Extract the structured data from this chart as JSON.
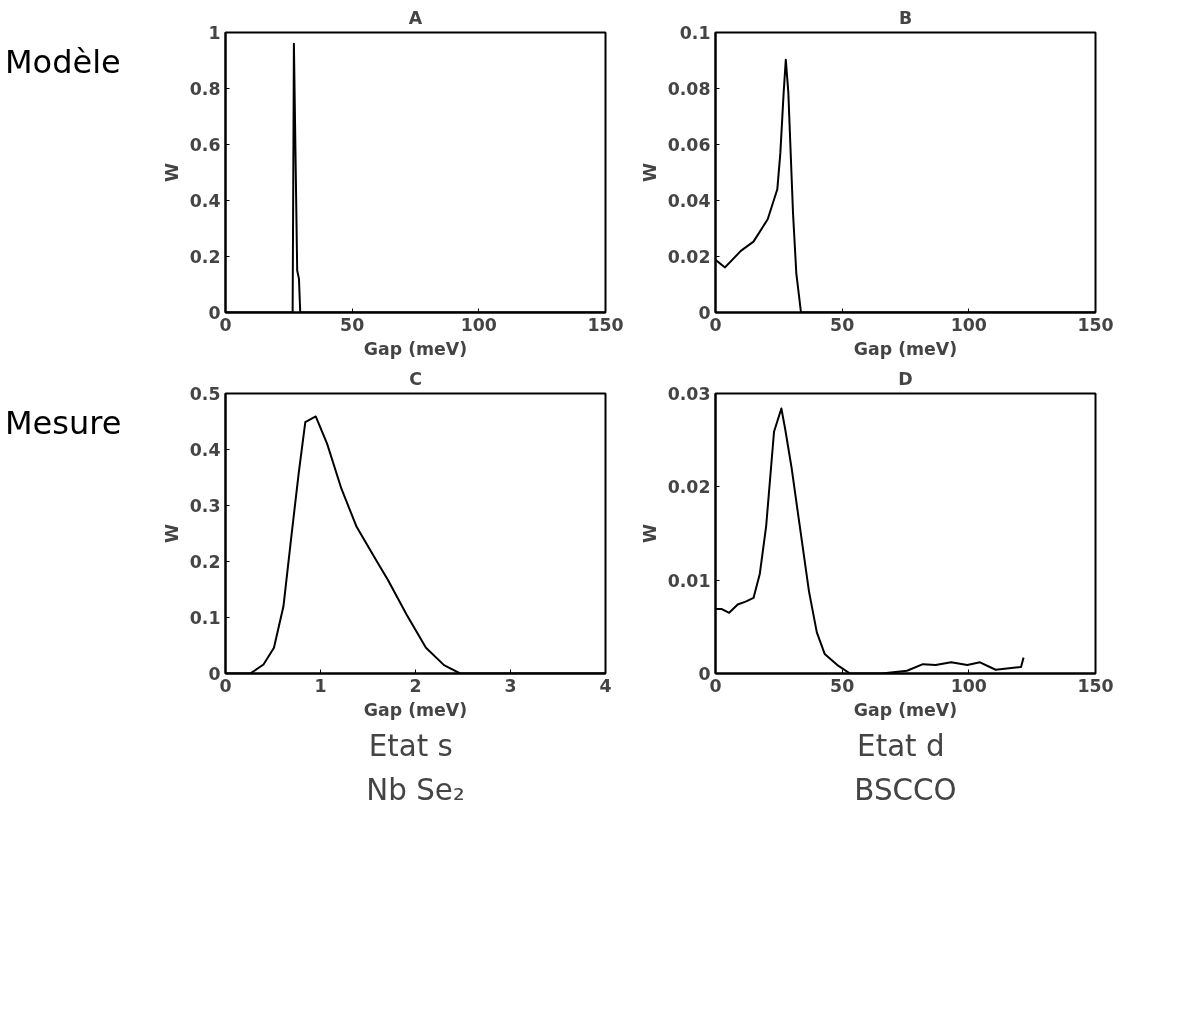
{
  "chart_data": [
    {
      "type": "line",
      "title": "A",
      "xlabel": "Gap (meV)",
      "ylabel": "W",
      "color": "#000000",
      "annotations": [
        "Modèle"
      ],
      "x": [
        0,
        26.5,
        27,
        28.3,
        29,
        29.5,
        150
      ],
      "values": [
        0,
        0,
        0.96,
        0.15,
        0.12,
        0,
        0
      ],
      "xlim": [
        0,
        150
      ],
      "xticks": [
        0,
        50,
        100,
        150
      ],
      "ylim": [
        0,
        1
      ],
      "yticks": [
        0,
        0.2,
        0.4,
        0.6,
        0.8,
        1
      ],
      "grid": false
    },
    {
      "type": "line",
      "title": "B",
      "xlabel": "Gap (meV)",
      "ylabel": "W",
      "color": "#000000",
      "x": [
        0,
        3.75,
        10,
        15,
        20.6,
        24.4,
        25.6,
        26.9,
        27.75,
        28.75,
        30.6,
        31.9,
        33.75,
        150
      ],
      "values": [
        0.0188,
        0.0161,
        0.022,
        0.0253,
        0.0333,
        0.044,
        0.057,
        0.0785,
        0.0903,
        0.0785,
        0.0355,
        0.014,
        0,
        0
      ],
      "xlim": [
        0,
        150
      ],
      "xticks": [
        0,
        50,
        100,
        150
      ],
      "ylim": [
        0,
        0.1
      ],
      "yticks": [
        0,
        0.02,
        0.04,
        0.06,
        0.08,
        0.1
      ],
      "grid": false
    },
    {
      "type": "line",
      "title": "C",
      "xlabel": "Gap (meV)",
      "ylabel": "W",
      "color": "#000000",
      "annotations": [
        "Mesure",
        "Etat  s",
        "Nb Se₂"
      ],
      "x": [
        0,
        0.26,
        0.4,
        0.51,
        0.61,
        0.69,
        0.77,
        0.84,
        0.95,
        1.07,
        1.22,
        1.38,
        1.58,
        1.71,
        1.91,
        2.11,
        2.3,
        2.47,
        4
      ],
      "values": [
        0,
        0,
        0.016,
        0.046,
        0.12,
        0.24,
        0.357,
        0.449,
        0.459,
        0.41,
        0.33,
        0.262,
        0.204,
        0.167,
        0.104,
        0.046,
        0.015,
        0,
        0
      ],
      "xlim": [
        0,
        4
      ],
      "xticks": [
        0,
        1,
        2,
        3,
        4
      ],
      "ylim": [
        0,
        0.5
      ],
      "yticks": [
        0,
        0.1,
        0.2,
        0.3,
        0.4,
        0.5
      ],
      "grid": false
    },
    {
      "type": "line",
      "title": "D",
      "xlabel": "Gap (meV)",
      "ylabel": "W",
      "color": "#000000",
      "annotations": [
        "Etat  d",
        "BSCCO"
      ],
      "x": [
        0,
        2.5,
        5.4,
        8.75,
        11.9,
        15,
        17.5,
        20,
        23.1,
        26,
        27.5,
        30,
        33.1,
        36.9,
        40,
        43.1,
        48.1,
        53.1,
        65.6,
        75.6,
        81.9,
        86.9,
        93,
        99.4,
        104.4,
        110.6,
        120.6,
        121.6
      ],
      "values": [
        0.0069,
        0.0069,
        0.0065,
        0.0074,
        0.0077,
        0.0081,
        0.0107,
        0.0158,
        0.0259,
        0.0284,
        0.0262,
        0.0221,
        0.0161,
        0.0088,
        0.0044,
        0.0021,
        0.0009,
        0,
        0,
        0.0003,
        0.001,
        0.0009,
        0.0012,
        0.0009,
        0.0012,
        0.0004,
        0.0007,
        0.0017
      ],
      "xlim": [
        0,
        150
      ],
      "xticks": [
        0,
        50,
        100,
        150
      ],
      "ylim": [
        0,
        0.03
      ],
      "yticks": [
        0,
        0.01,
        0.02,
        0.03
      ],
      "grid": false
    }
  ]
}
